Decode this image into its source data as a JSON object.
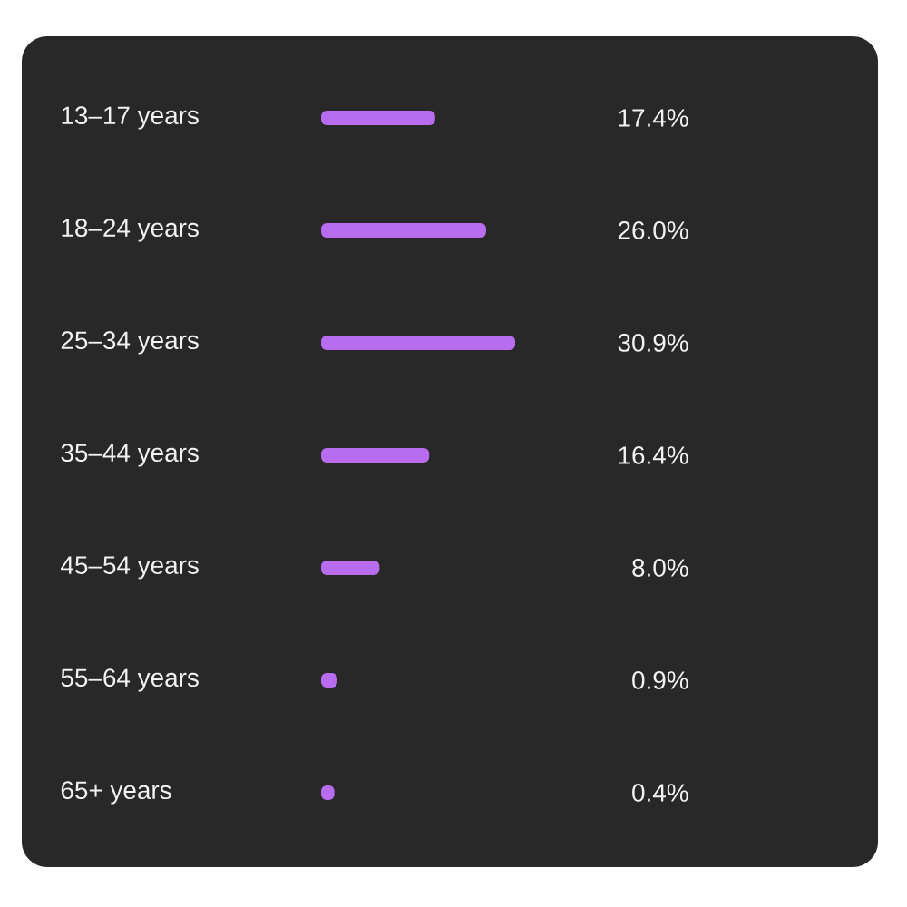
{
  "chart_data": {
    "type": "bar",
    "orientation": "horizontal",
    "categories": [
      "13–17 years",
      "18–24 years",
      "25–34 years",
      "35–44 years",
      "45–54 years",
      "55–64 years",
      "65+ years"
    ],
    "values": [
      17.4,
      26.0,
      30.9,
      16.4,
      8.0,
      0.9,
      0.4
    ],
    "color": "#b86cf0",
    "value_labels": [
      "17.4%",
      "26.0%",
      "30.9%",
      "16.4%",
      "8.0%",
      "0.9%",
      "0.4%"
    ]
  }
}
